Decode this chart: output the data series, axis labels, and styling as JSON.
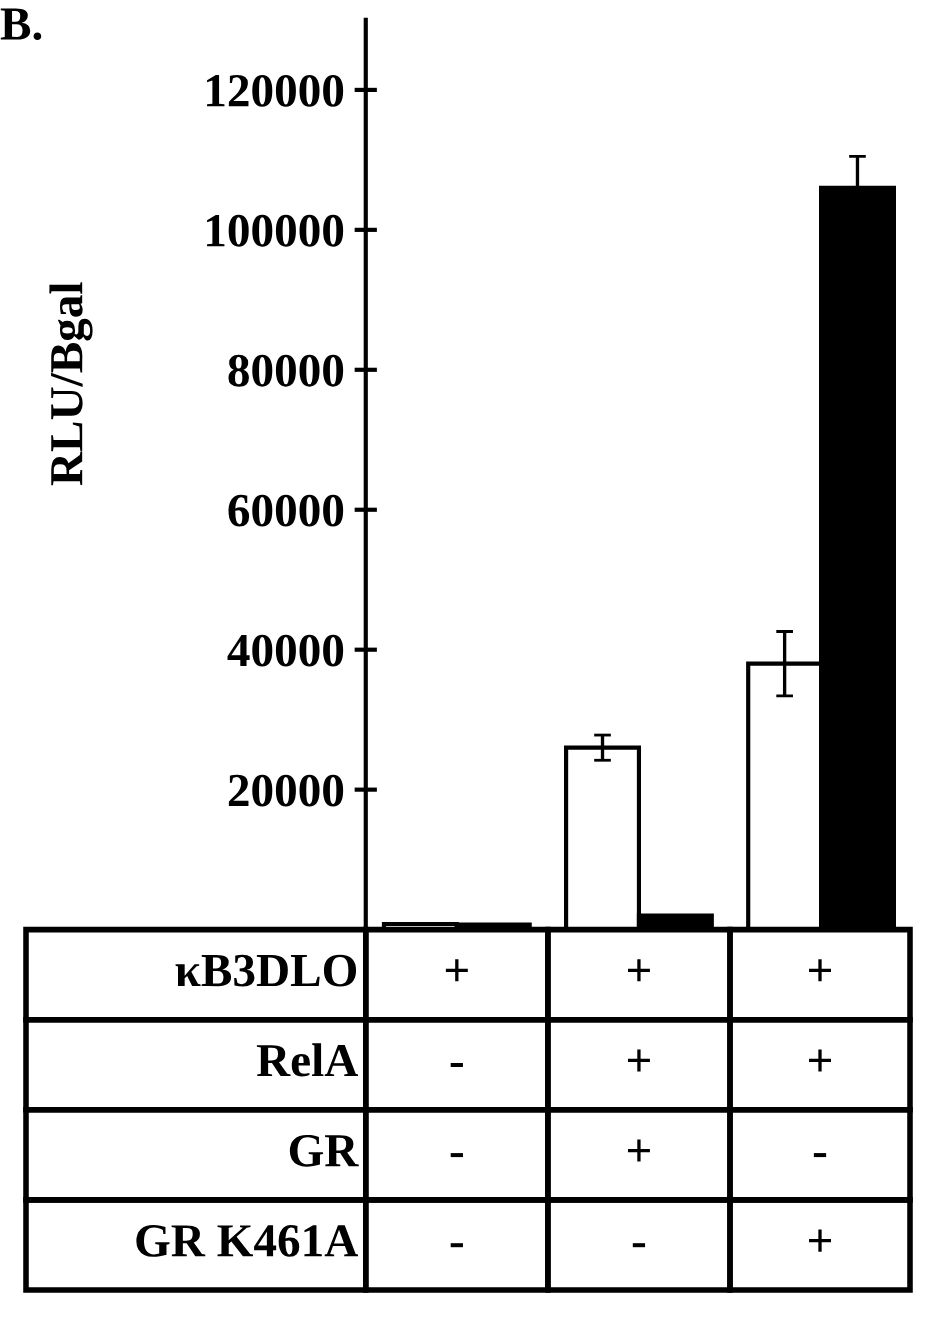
{
  "chart_data": {
    "type": "bar",
    "title": "B.",
    "ylabel": "RLU/Bgal",
    "categories": [
      null,
      null,
      null
    ],
    "series": [
      {
        "color": "#ffffff",
        "values": [
          800,
          26000,
          38000
        ],
        "errors": [
          null,
          1800,
          4600
        ]
      },
      {
        "color": "#000000",
        "values": [
          700,
          2000,
          106000
        ],
        "errors": [
          null,
          null,
          4500
        ]
      }
    ],
    "ylim": [
      0,
      130000
    ],
    "yticks": [
      20000,
      40000,
      60000,
      80000,
      100000,
      120000
    ],
    "grid": false,
    "legend": false,
    "tick_labels": "y",
    "annotations": [
      "κB3DLO",
      "+",
      "+",
      "+",
      "RelA",
      "-",
      "+",
      "+",
      "GR",
      "-",
      "+",
      "-",
      "GR K461A",
      "-",
      "-",
      "+"
    ]
  }
}
